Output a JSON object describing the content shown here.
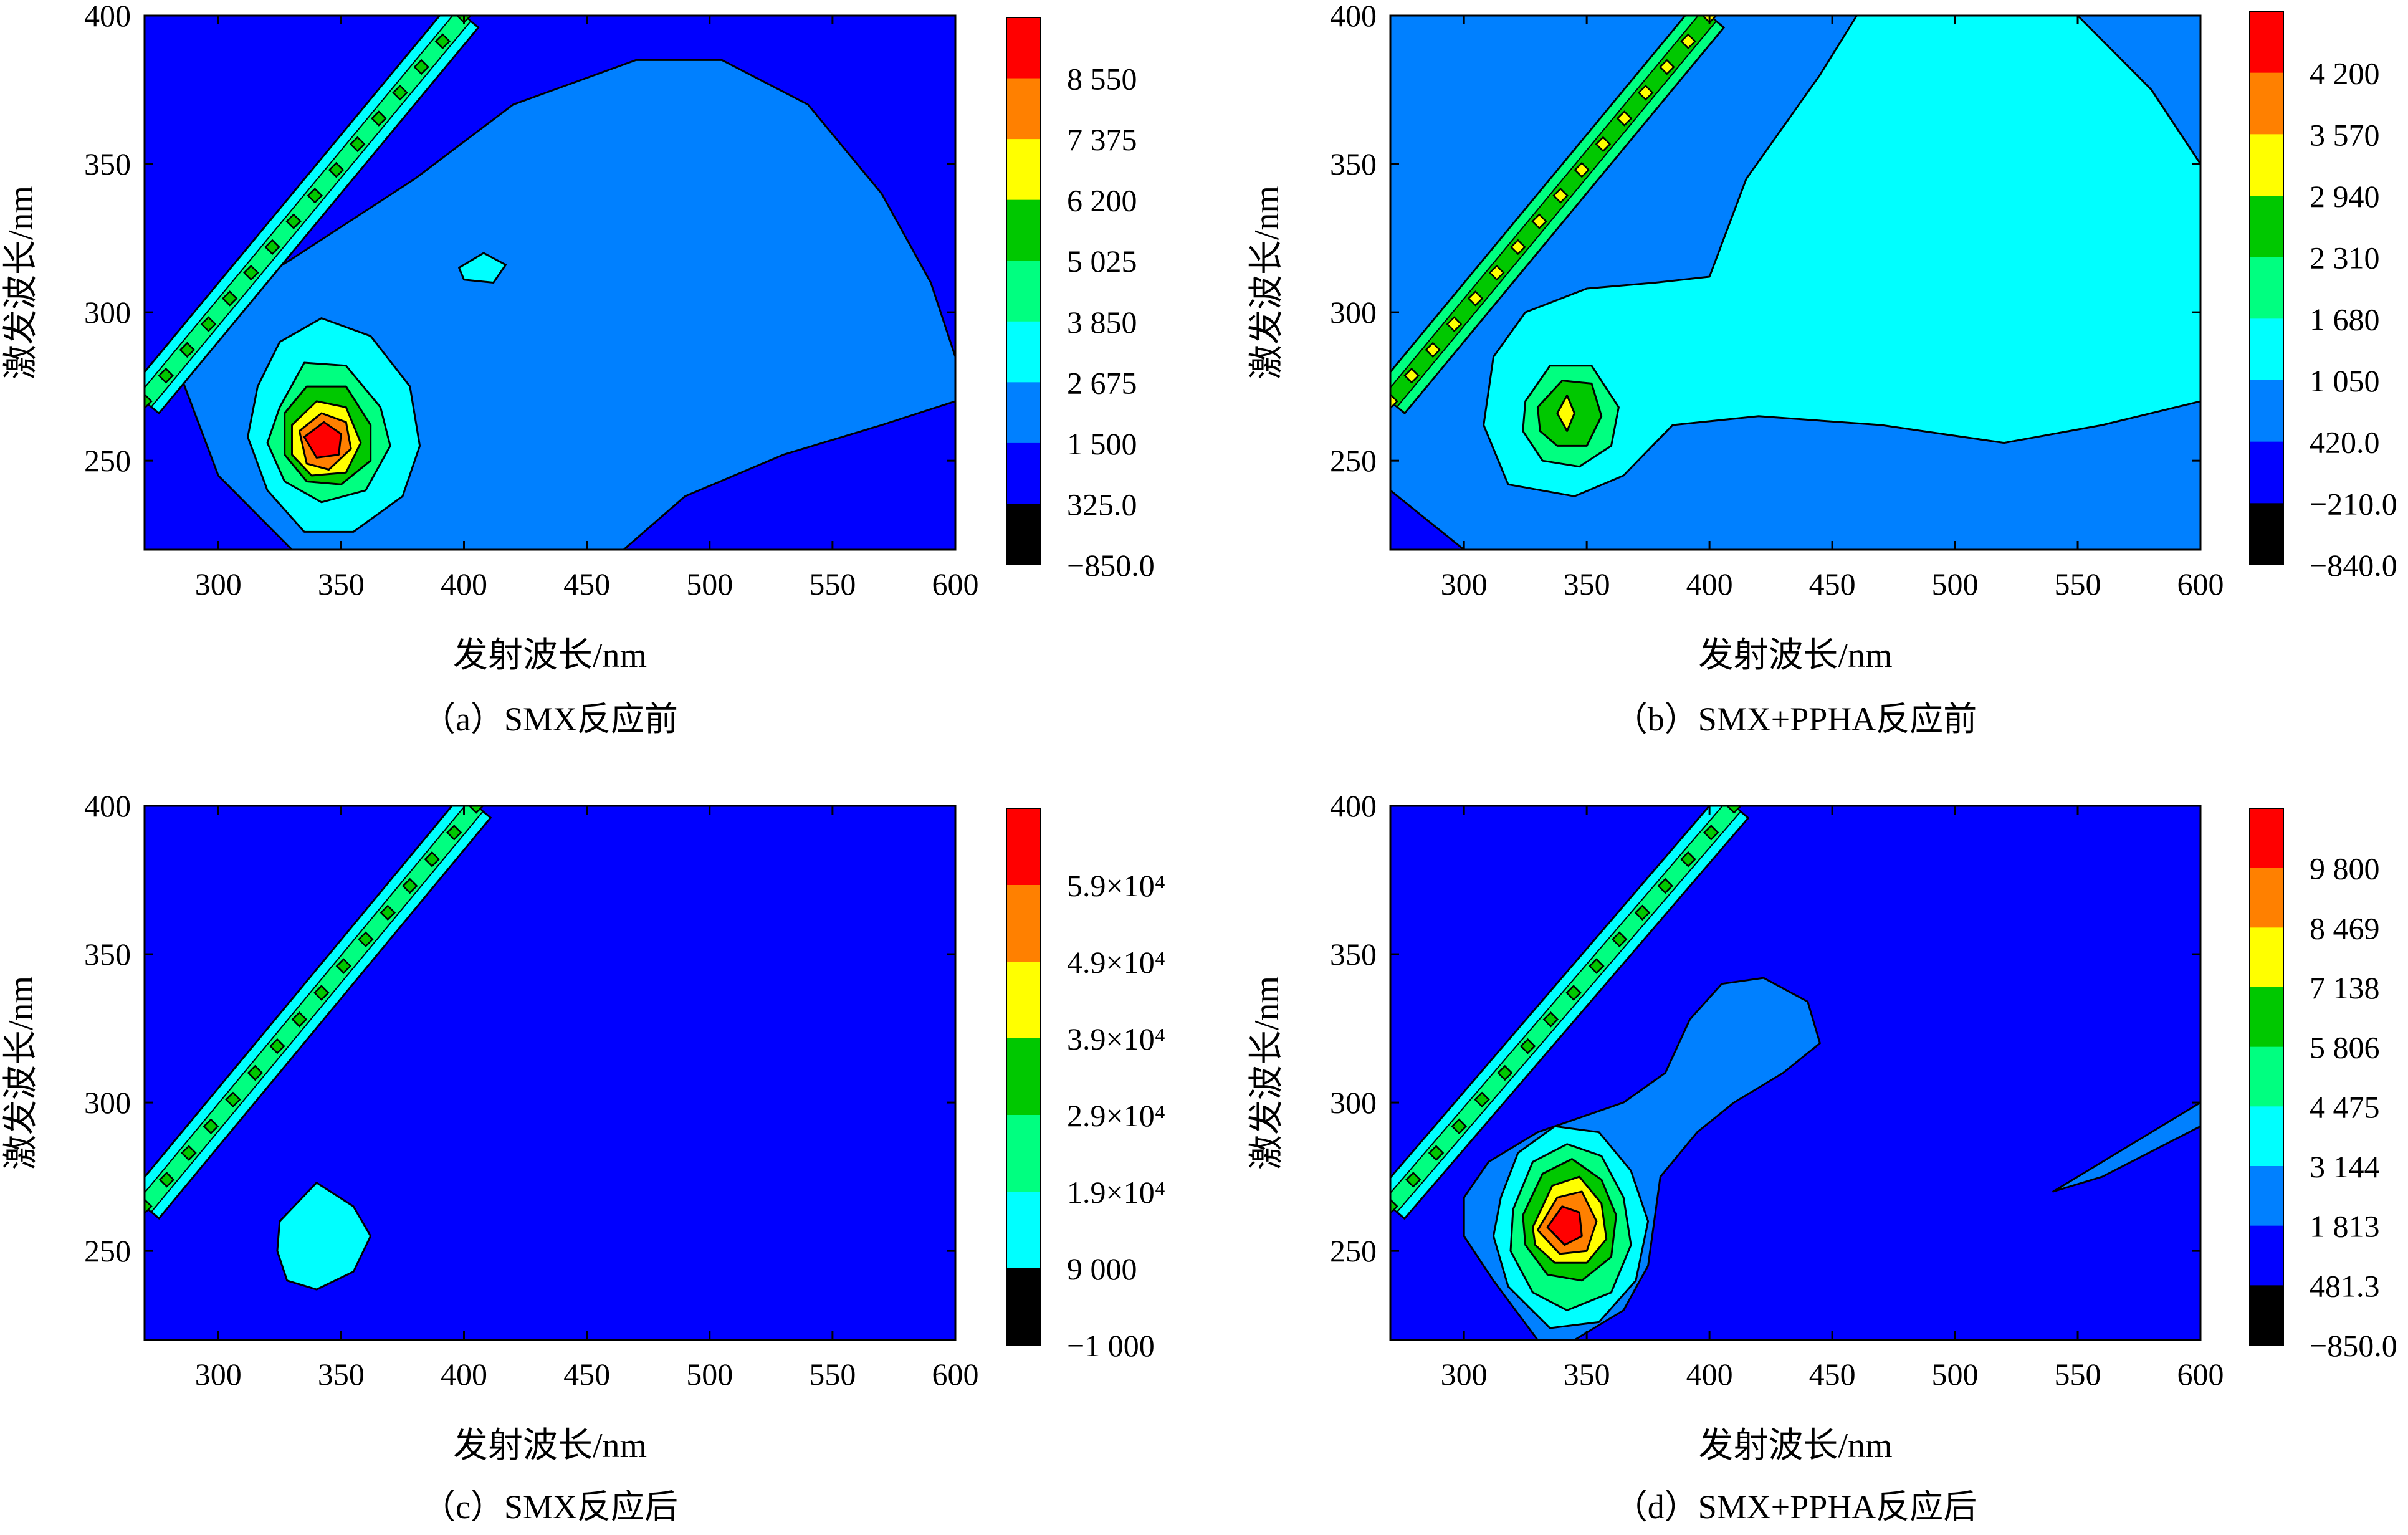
{
  "colormap": [
    "#000000",
    "#0000ff",
    "#0080ff",
    "#00ffff",
    "#00ff80",
    "#00c800",
    "#ffff00",
    "#ff8000",
    "#ff0000"
  ],
  "chart_data": [
    {
      "type": "heatmap",
      "caption": "（a）SMX反应前",
      "xlabel": "发射波长/nm",
      "ylabel": "激发波长/nm",
      "xlim": [
        270,
        600
      ],
      "ylim": [
        220,
        400
      ],
      "xticks": [
        "300",
        "350",
        "400",
        "450",
        "500",
        "550",
        "600"
      ],
      "yticks": [
        "250",
        "300",
        "350",
        "400"
      ],
      "colorbar_levels": [
        "8 550",
        "7 375",
        "6 200",
        "5 025",
        "3 850",
        "2 675",
        "1 500",
        "325.0",
        "−850.0"
      ],
      "background_level": 1,
      "scatter_band": {
        "x_start": 270,
        "y_start": 270,
        "x_end": 400,
        "y_end": 400,
        "level": 4
      },
      "regions": [
        {
          "level": 2,
          "points": [
            [
              295,
              300
            ],
            [
              330,
              318
            ],
            [
              380,
              345
            ],
            [
              420,
              370
            ],
            [
              470,
              385
            ],
            [
              505,
              385
            ],
            [
              540,
              370
            ],
            [
              570,
              340
            ],
            [
              590,
              310
            ],
            [
              600,
              285
            ],
            [
              600,
              270
            ],
            [
              570,
              262
            ],
            [
              530,
              252
            ],
            [
              490,
              238
            ],
            [
              465,
              220
            ],
            [
              330,
              220
            ],
            [
              300,
              245
            ],
            [
              285,
              278
            ]
          ]
        },
        {
          "level": 3,
          "points": [
            [
              316,
              275
            ],
            [
              325,
              290
            ],
            [
              342,
              298
            ],
            [
              362,
              292
            ],
            [
              378,
              275
            ],
            [
              382,
              255
            ],
            [
              375,
              238
            ],
            [
              355,
              226
            ],
            [
              335,
              226
            ],
            [
              320,
              240
            ],
            [
              312,
              258
            ]
          ]
        },
        {
          "level": 3,
          "points": [
            [
              398,
              315
            ],
            [
              408,
              320
            ],
            [
              417,
              316
            ],
            [
              412,
              310
            ],
            [
              400,
              311
            ]
          ]
        },
        {
          "level": 4,
          "points": [
            [
              325,
              268
            ],
            [
              335,
              283
            ],
            [
              352,
              282
            ],
            [
              366,
              268
            ],
            [
              370,
              255
            ],
            [
              360,
              240
            ],
            [
              342,
              236
            ],
            [
              327,
              243
            ],
            [
              320,
              256
            ]
          ]
        },
        {
          "level": 5,
          "points": [
            [
              327,
              266
            ],
            [
              336,
              275
            ],
            [
              352,
              275
            ],
            [
              362,
              262
            ],
            [
              362,
              250
            ],
            [
              350,
              242
            ],
            [
              336,
              243
            ],
            [
              327,
              252
            ]
          ]
        },
        {
          "level": 6,
          "points": [
            [
              330,
              262
            ],
            [
              340,
              270
            ],
            [
              352,
              268
            ],
            [
              358,
              256
            ],
            [
              352,
              246
            ],
            [
              338,
              245
            ],
            [
              330,
              252
            ]
          ]
        },
        {
          "level": 7,
          "points": [
            [
              333,
              260
            ],
            [
              342,
              266
            ],
            [
              352,
              263
            ],
            [
              354,
              254
            ],
            [
              345,
              247
            ],
            [
              336,
              249
            ]
          ]
        },
        {
          "level": 8,
          "points": [
            [
              335,
              258
            ],
            [
              343,
              263
            ],
            [
              350,
              259
            ],
            [
              349,
              252
            ],
            [
              340,
              251
            ]
          ]
        }
      ]
    },
    {
      "type": "heatmap",
      "caption": "（b）SMX+PPHA反应前",
      "xlabel": "发射波长/nm",
      "ylabel": "激发波长/nm",
      "xlim": [
        270,
        600
      ],
      "ylim": [
        220,
        400
      ],
      "xticks": [
        "300",
        "350",
        "400",
        "450",
        "500",
        "550",
        "600"
      ],
      "yticks": [
        "250",
        "300",
        "350",
        "400"
      ],
      "colorbar_levels": [
        "4 200",
        "3 570",
        "2 940",
        "2 310",
        "1 680",
        "1 050",
        "420.0",
        "−210.0",
        "−840.0"
      ],
      "background_level": 2,
      "scatter_band": {
        "x_start": 270,
        "y_start": 270,
        "x_end": 400,
        "y_end": 400,
        "level": 5
      },
      "regions": [
        {
          "level": 1,
          "points": [
            [
              270,
              240
            ],
            [
              285,
              230
            ],
            [
              300,
              220
            ],
            [
              270,
              220
            ]
          ]
        },
        {
          "level": 3,
          "points": [
            [
              325,
              300
            ],
            [
              350,
              308
            ],
            [
              378,
              310
            ],
            [
              400,
              312
            ],
            [
              415,
              345
            ],
            [
              445,
              380
            ],
            [
              460,
              400
            ],
            [
              550,
              400
            ],
            [
              580,
              375
            ],
            [
              600,
              350
            ],
            [
              600,
              270
            ],
            [
              560,
              262
            ],
            [
              520,
              256
            ],
            [
              470,
              262
            ],
            [
              420,
              265
            ],
            [
              385,
              262
            ],
            [
              365,
              245
            ],
            [
              345,
              238
            ],
            [
              318,
              242
            ],
            [
              308,
              262
            ],
            [
              312,
              285
            ]
          ]
        },
        {
          "level": 4,
          "points": [
            [
              325,
              270
            ],
            [
              335,
              282
            ],
            [
              352,
              282
            ],
            [
              363,
              268
            ],
            [
              360,
              255
            ],
            [
              347,
              248
            ],
            [
              332,
              250
            ],
            [
              324,
              260
            ]
          ]
        },
        {
          "level": 5,
          "points": [
            [
              330,
              268
            ],
            [
              340,
              277
            ],
            [
              352,
              276
            ],
            [
              356,
              265
            ],
            [
              350,
              255
            ],
            [
              338,
              255
            ],
            [
              331,
              260
            ]
          ]
        },
        {
          "level": 6,
          "points": [
            [
              338,
              266
            ],
            [
              342,
              272
            ],
            [
              345,
              266
            ],
            [
              342,
              260
            ]
          ]
        }
      ]
    },
    {
      "type": "heatmap",
      "caption": "（c）SMX反应后",
      "xlabel": "发射波长/nm",
      "ylabel": "激发波长/nm",
      "xlim": [
        270,
        600
      ],
      "ylim": [
        220,
        400
      ],
      "xticks": [
        "300",
        "350",
        "400",
        "450",
        "500",
        "550",
        "600"
      ],
      "yticks": [
        "250",
        "300",
        "350",
        "400"
      ],
      "colorbar_levels": [
        "5.9×10⁴",
        "4.9×10⁴",
        "3.9×10⁴",
        "2.9×10⁴",
        "1.9×10⁴",
        "9 000",
        "−1 000"
      ],
      "background_level": 1,
      "scatter_band": {
        "x_start": 270,
        "y_start": 265,
        "x_end": 405,
        "y_end": 400,
        "level": 4
      },
      "regions": [
        {
          "level": 3,
          "points": [
            [
              325,
              260
            ],
            [
              340,
              273
            ],
            [
              355,
              265
            ],
            [
              362,
              255
            ],
            [
              355,
              243
            ],
            [
              340,
              237
            ],
            [
              328,
              240
            ],
            [
              324,
              250
            ]
          ]
        }
      ]
    },
    {
      "type": "heatmap",
      "caption": "（d）SMX+PPHA反应后",
      "xlabel": "发射波长/nm",
      "ylabel": "激发波长/nm",
      "xlim": [
        270,
        600
      ],
      "ylim": [
        220,
        400
      ],
      "xticks": [
        "300",
        "350",
        "400",
        "450",
        "500",
        "550",
        "600"
      ],
      "yticks": [
        "250",
        "300",
        "350",
        "400"
      ],
      "colorbar_levels": [
        "9 800",
        "8 469",
        "7 138",
        "5 806",
        "4 475",
        "3 144",
        "1 813",
        "481.3",
        "−850.0"
      ],
      "background_level": 1,
      "scatter_band": {
        "x_start": 270,
        "y_start": 265,
        "x_end": 410,
        "y_end": 400,
        "level": 4
      },
      "regions": [
        {
          "level": 2,
          "points": [
            [
              300,
              268
            ],
            [
              310,
              280
            ],
            [
              330,
              290
            ],
            [
              365,
              300
            ],
            [
              382,
              310
            ],
            [
              392,
              328
            ],
            [
              405,
              340
            ],
            [
              422,
              342
            ],
            [
              440,
              334
            ],
            [
              445,
              320
            ],
            [
              430,
              310
            ],
            [
              410,
              300
            ],
            [
              395,
              290
            ],
            [
              380,
              275
            ],
            [
              375,
              245
            ],
            [
              365,
              230
            ],
            [
              345,
              220
            ],
            [
              330,
              220
            ],
            [
              312,
              240
            ],
            [
              300,
              255
            ]
          ]
        },
        {
          "level": 2,
          "points": [
            [
              540,
              270
            ],
            [
              600,
              300
            ],
            [
              600,
              292
            ],
            [
              560,
              275
            ]
          ]
        },
        {
          "level": 3,
          "points": [
            [
              315,
              268
            ],
            [
              322,
              283
            ],
            [
              337,
              292
            ],
            [
              355,
              290
            ],
            [
              368,
              277
            ],
            [
              375,
              260
            ],
            [
              370,
              240
            ],
            [
              355,
              226
            ],
            [
              335,
              224
            ],
            [
              318,
              238
            ],
            [
              312,
              255
            ]
          ]
        },
        {
          "level": 4,
          "points": [
            [
              320,
              264
            ],
            [
              328,
              280
            ],
            [
              342,
              286
            ],
            [
              356,
              282
            ],
            [
              365,
              268
            ],
            [
              368,
              252
            ],
            [
              360,
              236
            ],
            [
              342,
              230
            ],
            [
              328,
              236
            ],
            [
              319,
              250
            ]
          ]
        },
        {
          "level": 5,
          "points": [
            [
              324,
              262
            ],
            [
              332,
              276
            ],
            [
              344,
              281
            ],
            [
              356,
              274
            ],
            [
              362,
              262
            ],
            [
              360,
              248
            ],
            [
              348,
              240
            ],
            [
              334,
              242
            ],
            [
              325,
              252
            ]
          ]
        },
        {
          "level": 6,
          "points": [
            [
              328,
              258
            ],
            [
              336,
              272
            ],
            [
              347,
              275
            ],
            [
              356,
              266
            ],
            [
              358,
              254
            ],
            [
              350,
              246
            ],
            [
              337,
              246
            ],
            [
              329,
              252
            ]
          ]
        },
        {
          "level": 7,
          "points": [
            [
              330,
              257
            ],
            [
              338,
              268
            ],
            [
              348,
              270
            ],
            [
              354,
              260
            ],
            [
              350,
              250
            ],
            [
              339,
              249
            ]
          ]
        },
        {
          "level": 8,
          "points": [
            [
              334,
              258
            ],
            [
              340,
              265
            ],
            [
              347,
              263
            ],
            [
              348,
              255
            ],
            [
              341,
              252
            ]
          ]
        }
      ]
    }
  ]
}
